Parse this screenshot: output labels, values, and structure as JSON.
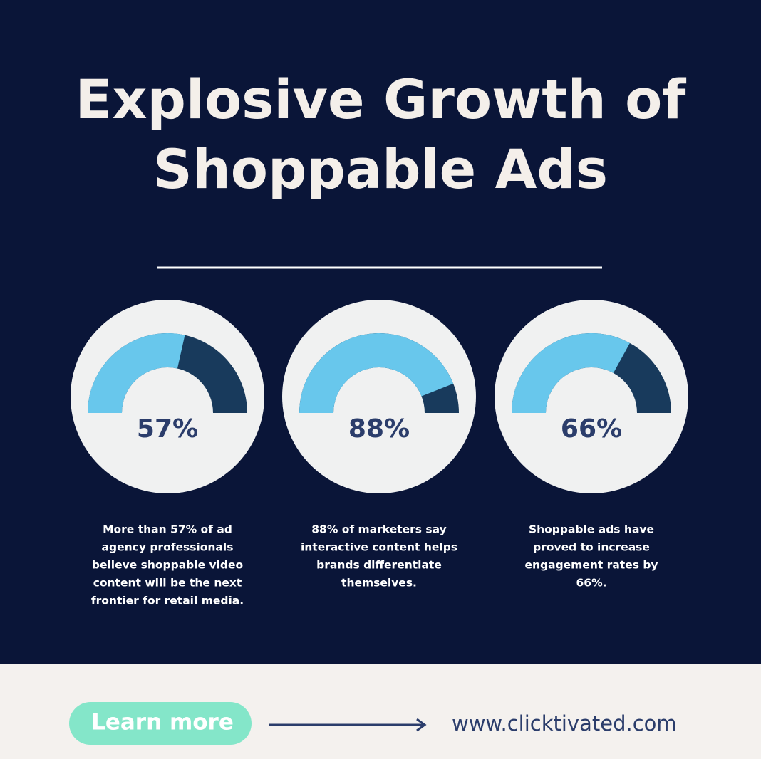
{
  "header": {
    "title_lines": [
      "Explosive Growth of",
      "Shoppable Ads"
    ]
  },
  "gauges": [
    {
      "value": 57,
      "label": "57%",
      "caption_lines": [
        "More than 57% of ad",
        "agency professionals",
        "believe shoppable video",
        "content will be the next",
        "frontier for retail media."
      ]
    },
    {
      "value": 88,
      "label": "88%",
      "caption_lines": [
        "88% of marketers say",
        "interactive content helps",
        "brands differentiate",
        "themselves."
      ]
    },
    {
      "value": 66,
      "label": "66%",
      "caption_lines": [
        "Shoppable ads have",
        "proved to increase",
        "engagement rates by",
        "66%."
      ]
    }
  ],
  "footer": {
    "button": "Learn more",
    "url": "www.clicktivated.com"
  }
}
